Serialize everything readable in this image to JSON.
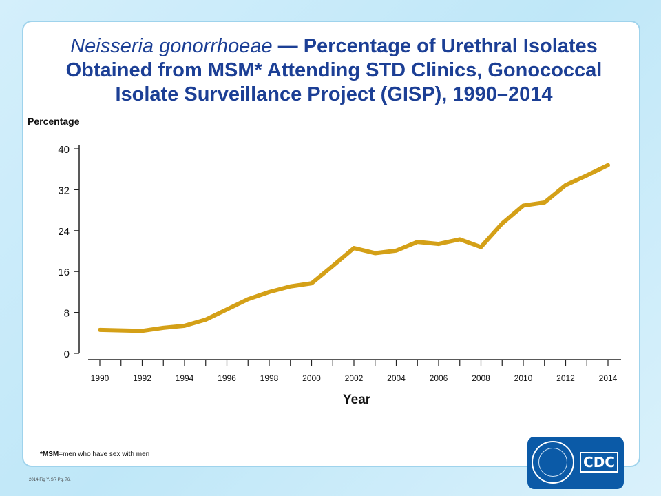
{
  "title": {
    "italic": "Neisseria gonorrhoeae",
    "rest": " — Percentage of Urethral Isolates Obtained from MSM* Attending STD Clinics, Gonococcal Isolate Surveillance Project (GISP), 1990–2014"
  },
  "footnote": {
    "bold": "*MSM",
    "rest": "=men who have sex with men"
  },
  "slide_ref": "2014-Fig Y. SR Pg. 76.",
  "logo": {
    "text": "CDC"
  },
  "colors": {
    "line": "#d4a017",
    "title": "#1c3f95",
    "panel_border": "#9fd3ec",
    "logo_bg": "#0b5aa7"
  },
  "chart_data": {
    "type": "line",
    "ylabel": "Percentage",
    "xlabel": "Year",
    "ylim": [
      0,
      40
    ],
    "yticks": [
      0,
      8,
      16,
      24,
      32,
      40
    ],
    "xlim": [
      1990,
      2014
    ],
    "xticks": [
      1990,
      1992,
      1994,
      1996,
      1998,
      2000,
      2002,
      2004,
      2006,
      2008,
      2010,
      2012,
      2014
    ],
    "grid": false,
    "series": [
      {
        "x": [
          1990,
          1991,
          1992,
          1993,
          1994,
          1995,
          1996,
          1997,
          1998,
          1999,
          2000,
          2001,
          2002,
          2003,
          2004,
          2005,
          2006,
          2007,
          2008,
          2009,
          2010,
          2011,
          2012,
          2013,
          2014
        ],
        "y": [
          4.6,
          4.5,
          4.4,
          5.0,
          5.4,
          6.6,
          8.6,
          10.6,
          12.0,
          13.1,
          13.7,
          17.1,
          20.6,
          19.6,
          20.1,
          21.8,
          21.4,
          22.3,
          20.8,
          25.4,
          28.9,
          29.5,
          32.9,
          34.8,
          36.8
        ]
      }
    ]
  }
}
